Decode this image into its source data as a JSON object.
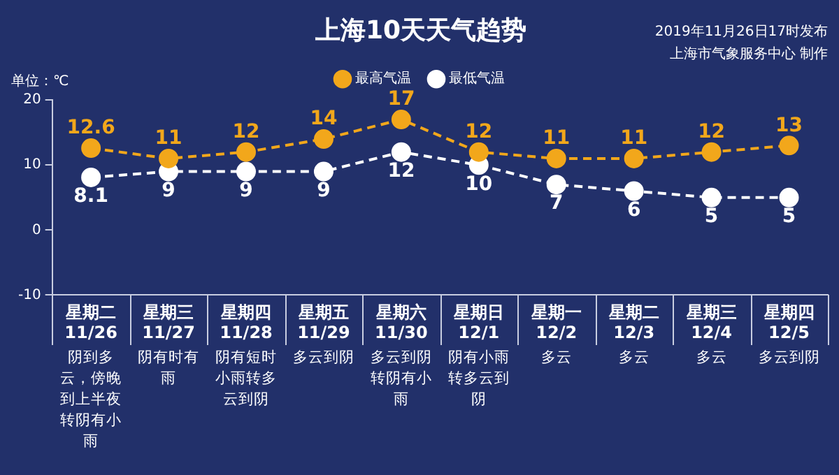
{
  "chart_data": {
    "type": "line",
    "title": "上海10天天气趋势",
    "ylabel": "单位：℃",
    "categories": [
      "星期二\n11/26",
      "星期三\n11/27",
      "星期四\n11/28",
      "星期五\n11/29",
      "星期六\n11/30",
      "星期日\n12/1",
      "星期一\n12/2",
      "星期二\n12/3",
      "星期三\n12/4",
      "星期四\n12/5"
    ],
    "series": [
      {
        "name": "最高气温",
        "color": "#f2a71b",
        "values": [
          12.6,
          11,
          12,
          14,
          17,
          12,
          11,
          11,
          12,
          13
        ]
      },
      {
        "name": "最低气温",
        "color": "#ffffff",
        "values": [
          8.1,
          9,
          9,
          9,
          12,
          10,
          7,
          6,
          5,
          5
        ]
      }
    ],
    "ylim": [
      -10,
      20
    ],
    "yticks": [
      -10,
      0,
      10,
      20
    ],
    "grid": false,
    "legend": "top",
    "marker": "circle",
    "line_style": "dashed",
    "data_labels": true,
    "annotations": [
      "2019年11月26日17时发布",
      "上海市气象服务中心 制作",
      "阴到多云，傍晚到上半夜转阴有小雨",
      "阴有时有雨",
      "阴有短时小雨转多云到阴",
      "多云到阴",
      "多云到阴转阴有小雨",
      "阴有小雨转多云到阴",
      "多云",
      "多云",
      "多云",
      "多云到阴"
    ]
  }
}
